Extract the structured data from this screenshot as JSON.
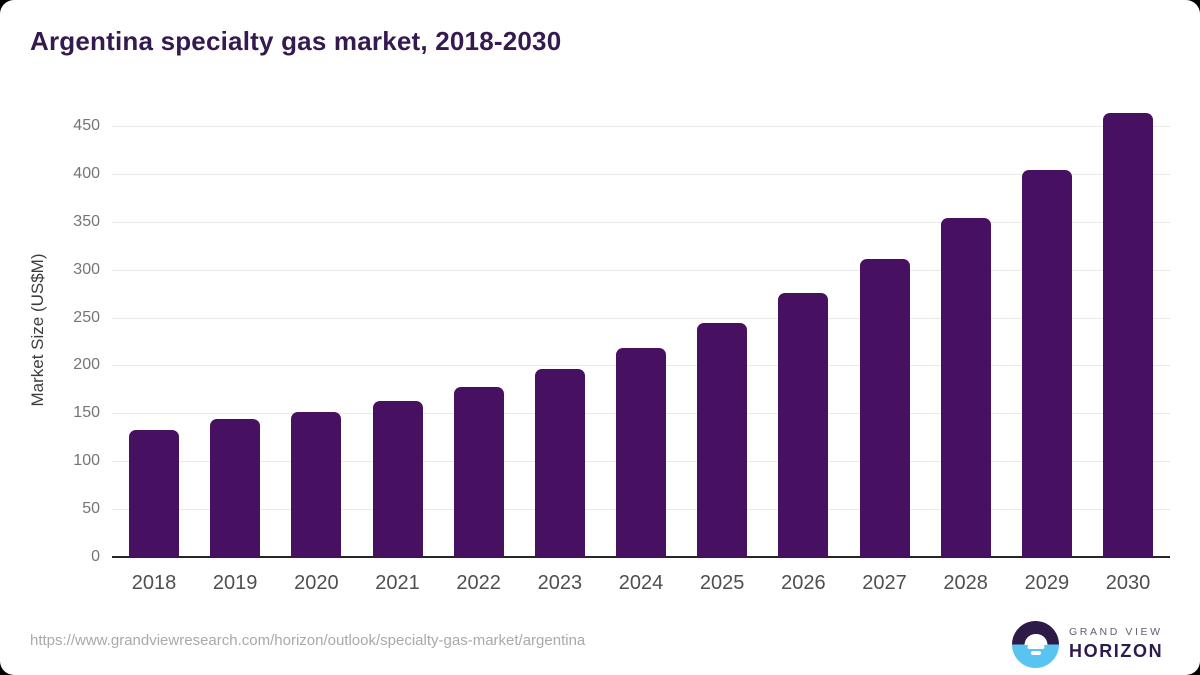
{
  "chart_data": {
    "type": "bar",
    "title": "Argentina specialty gas market, 2018-2030",
    "categories": [
      "2018",
      "2019",
      "2020",
      "2021",
      "2022",
      "2023",
      "2024",
      "2025",
      "2026",
      "2027",
      "2028",
      "2029",
      "2030"
    ],
    "values": [
      133,
      144,
      151,
      163,
      177,
      196,
      218,
      244,
      276,
      311,
      354,
      404,
      464
    ],
    "xlabel": "",
    "ylabel": "Market Size (US$M)",
    "ylim": [
      0,
      473
    ],
    "yticks": [
      0,
      50,
      100,
      150,
      200,
      250,
      300,
      350,
      400,
      450
    ],
    "grid": true,
    "legend": false,
    "bar_color": "#471061"
  },
  "colors": {
    "title": "#351a4f",
    "bar": "#471061",
    "gridline": "#e9e9e9",
    "axis": "#262626",
    "logo_purple": "#2e1a47",
    "logo_blue": "#5ac4f1"
  },
  "footer": {
    "source_url": "https://www.grandviewresearch.com/horizon/outlook/specialty-gas-market/argentina",
    "brand_line1": "GRAND VIEW",
    "brand_line2": "HORIZON"
  }
}
